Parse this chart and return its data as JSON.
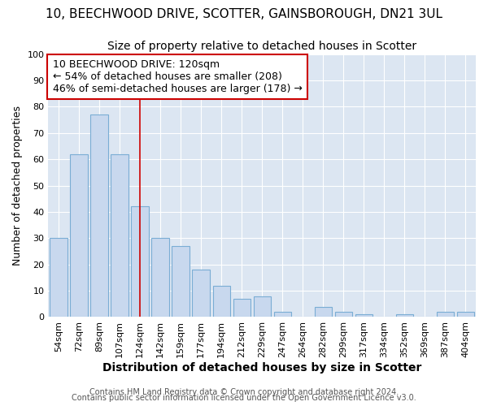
{
  "title_line1": "10, BEECHWOOD DRIVE, SCOTTER, GAINSBOROUGH, DN21 3UL",
  "title_line2": "Size of property relative to detached houses in Scotter",
  "xlabel": "Distribution of detached houses by size in Scotter",
  "ylabel": "Number of detached properties",
  "bar_labels": [
    "54sqm",
    "72sqm",
    "89sqm",
    "107sqm",
    "124sqm",
    "142sqm",
    "159sqm",
    "177sqm",
    "194sqm",
    "212sqm",
    "229sqm",
    "247sqm",
    "264sqm",
    "282sqm",
    "299sqm",
    "317sqm",
    "334sqm",
    "352sqm",
    "369sqm",
    "387sqm",
    "404sqm"
  ],
  "bar_values": [
    30,
    62,
    77,
    62,
    42,
    30,
    27,
    18,
    12,
    7,
    8,
    2,
    0,
    4,
    2,
    1,
    0,
    1,
    0,
    2,
    2
  ],
  "bar_color": "#c8d8ee",
  "bar_edge_color": "#7aadd4",
  "fig_background_color": "#ffffff",
  "plot_background_color": "#dce6f2",
  "grid_color": "#ffffff",
  "vline_x": 4,
  "vline_color": "#cc0000",
  "annotation_text": "10 BEECHWOOD DRIVE: 120sqm\n← 54% of detached houses are smaller (208)\n46% of semi-detached houses are larger (178) →",
  "annotation_box_facecolor": "#ffffff",
  "annotation_box_edgecolor": "#cc0000",
  "ylim": [
    0,
    100
  ],
  "yticks": [
    0,
    10,
    20,
    30,
    40,
    50,
    60,
    70,
    80,
    90,
    100
  ],
  "footer_line1": "Contains HM Land Registry data © Crown copyright and database right 2024.",
  "footer_line2": "Contains public sector information licensed under the Open Government Licence v3.0.",
  "title_fontsize": 11,
  "subtitle_fontsize": 10,
  "xlabel_fontsize": 10,
  "ylabel_fontsize": 9,
  "tick_fontsize": 8,
  "annotation_fontsize": 9,
  "footer_fontsize": 7
}
